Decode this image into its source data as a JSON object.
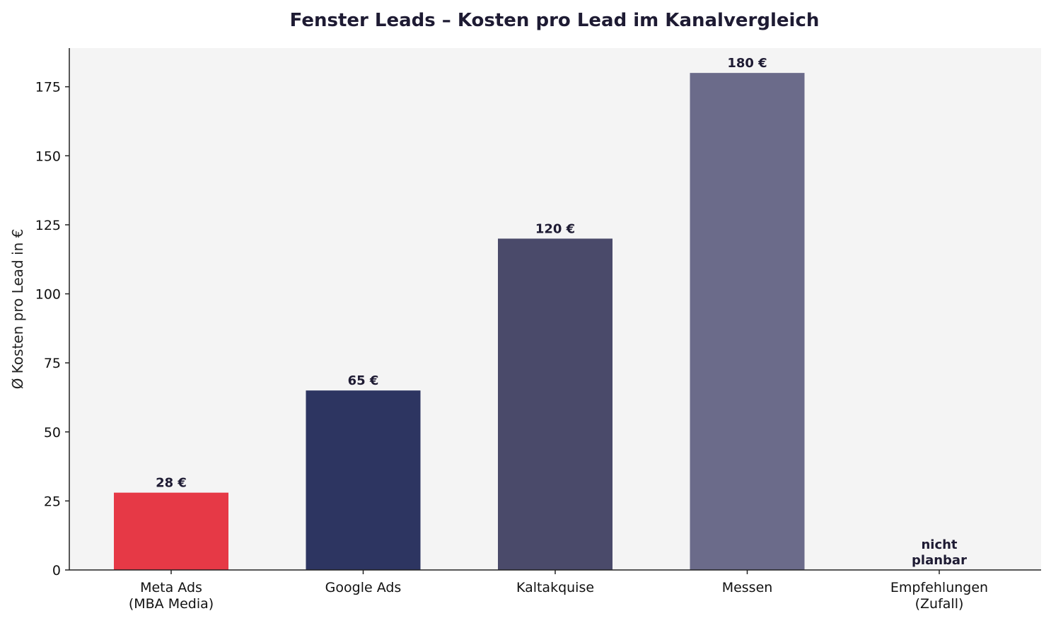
{
  "chart_data": {
    "type": "bar",
    "title": "Fenster Leads – Kosten pro Lead im Kanalvergleich",
    "xlabel": "",
    "ylabel": "Ø Kosten pro Lead in €",
    "ylim": [
      0,
      189
    ],
    "yticks": [
      0,
      25,
      50,
      75,
      100,
      125,
      150,
      175
    ],
    "grid": false,
    "categories": [
      [
        "Meta Ads",
        "(MBA Media)"
      ],
      [
        "Google Ads"
      ],
      [
        "Kaltakquise"
      ],
      [
        "Messen"
      ],
      [
        "Empfehlungen",
        "(Zufall)"
      ]
    ],
    "values": [
      28,
      65,
      120,
      180,
      0
    ],
    "data_labels": [
      [
        "28 €"
      ],
      [
        "65 €"
      ],
      [
        "120 €"
      ],
      [
        "180 €"
      ],
      [
        "nicht",
        "planbar"
      ]
    ],
    "colors": [
      "#e63946",
      "#2d3561",
      "#4a4a6a",
      "#6b6b8a",
      "#6b6b8a"
    ],
    "plot_background": "#f4f4f4",
    "text_color": "#1e1b33"
  }
}
